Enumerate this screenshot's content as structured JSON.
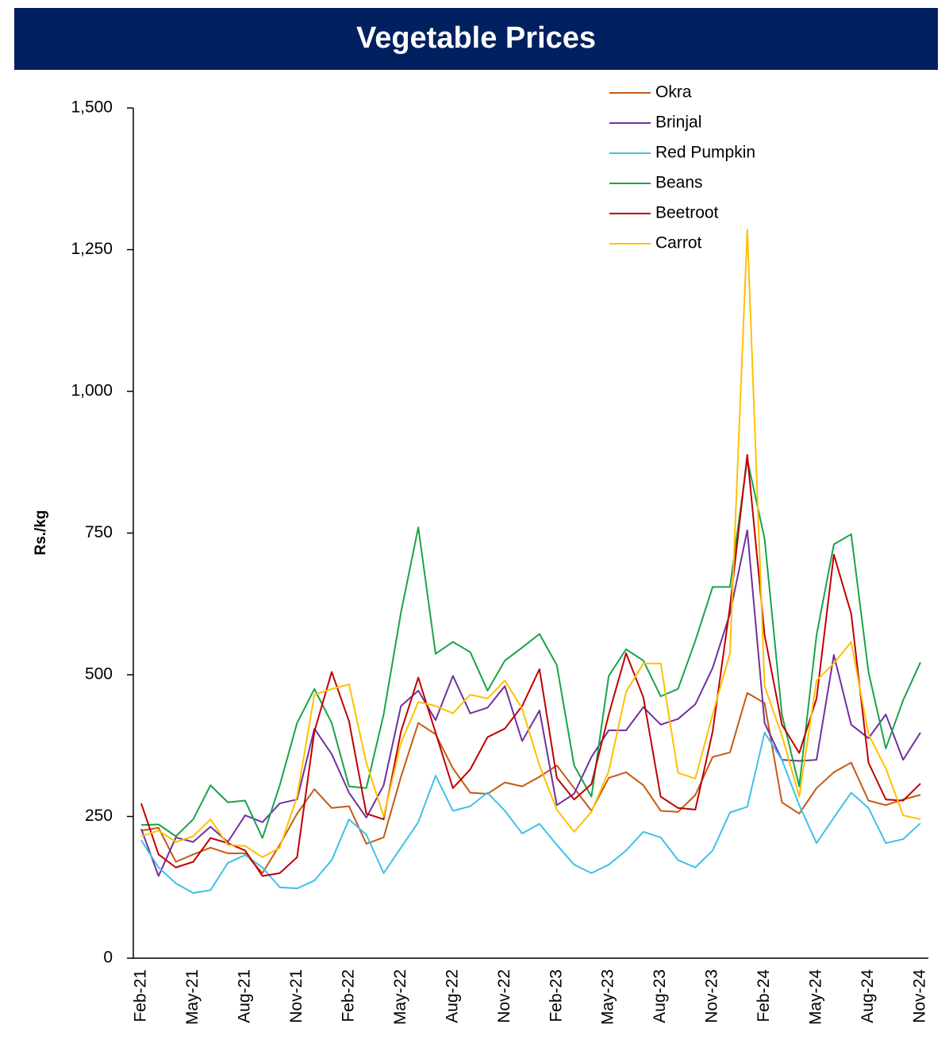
{
  "chart_data": {
    "type": "line",
    "title": "Vegetable Prices",
    "y_label": "Rs./kg",
    "categories": [
      "Feb-21",
      null,
      null,
      "May-21",
      null,
      null,
      "Aug-21",
      null,
      null,
      "Nov-21",
      null,
      null,
      "Feb-22",
      null,
      null,
      "May-22",
      null,
      null,
      "Aug-22",
      null,
      null,
      "Nov-22",
      null,
      null,
      "Feb-23",
      null,
      null,
      "May-23",
      null,
      null,
      "Aug-23",
      null,
      null,
      "Nov-23",
      null,
      null,
      "Feb-24",
      null,
      null,
      "May-24",
      null,
      null,
      "Aug-24",
      null,
      null,
      "Nov-24"
    ],
    "ylim": [
      0,
      1500
    ],
    "yticks": [
      0,
      250,
      500,
      750,
      {
        "value": 1000,
        "label": "1,000"
      },
      {
        "value": 1250,
        "label": "1,250"
      },
      {
        "value": 1500,
        "label": "1,500"
      }
    ],
    "grid": false,
    "legend": "top-right",
    "series": [
      {
        "name": "Okra",
        "color": "#C55A11",
        "values": [
          225,
          230,
          170,
          183,
          195,
          185,
          185,
          150,
          200,
          255,
          298,
          265,
          268,
          202,
          213,
          320,
          415,
          395,
          335,
          292,
          290,
          310,
          303,
          320,
          340,
          300,
          260,
          318,
          328,
          305,
          260,
          258,
          288,
          355,
          363,
          468,
          450,
          275,
          255,
          300,
          328,
          345,
          278,
          270,
          280,
          288
        ]
      },
      {
        "name": "Brinjal",
        "color": "#7030A0",
        "values": [
          228,
          145,
          213,
          205,
          232,
          205,
          252,
          240,
          273,
          280,
          405,
          360,
          292,
          248,
          305,
          445,
          472,
          420,
          498,
          432,
          442,
          480,
          383,
          437,
          270,
          290,
          355,
          402,
          402,
          443,
          412,
          422,
          448,
          512,
          608,
          755,
          415,
          350,
          348,
          350,
          535,
          412,
          388,
          430,
          350,
          398
        ]
      },
      {
        "name": "Red Pumpkin",
        "color": "#3EC1E8",
        "values": [
          208,
          160,
          132,
          115,
          120,
          168,
          182,
          160,
          125,
          123,
          137,
          173,
          245,
          218,
          150,
          195,
          240,
          322,
          260,
          268,
          292,
          260,
          220,
          237,
          200,
          165,
          150,
          165,
          190,
          223,
          213,
          173,
          160,
          190,
          257,
          267,
          398,
          350,
          270,
          203,
          248,
          292,
          265,
          203,
          210,
          238
        ]
      },
      {
        "name": "Beans",
        "color": "#1AA34A",
        "values": [
          235,
          236,
          215,
          245,
          305,
          275,
          278,
          212,
          305,
          415,
          475,
          415,
          303,
          300,
          430,
          610,
          760,
          537,
          558,
          540,
          472,
          525,
          548,
          572,
          517,
          340,
          285,
          498,
          545,
          525,
          462,
          475,
          560,
          655,
          655,
          880,
          740,
          430,
          303,
          570,
          730,
          748,
          505,
          370,
          455,
          522
        ]
      },
      {
        "name": "Beetroot",
        "color": "#C00000",
        "values": [
          273,
          183,
          160,
          170,
          212,
          203,
          190,
          145,
          150,
          178,
          400,
          505,
          418,
          255,
          245,
          400,
          495,
          398,
          300,
          333,
          390,
          405,
          445,
          510,
          318,
          280,
          307,
          430,
          538,
          460,
          285,
          265,
          262,
          400,
          620,
          888,
          570,
          412,
          362,
          458,
          712,
          608,
          345,
          280,
          278,
          308
        ]
      },
      {
        "name": "Carrot",
        "color": "#FFC000",
        "values": [
          215,
          225,
          205,
          215,
          245,
          200,
          198,
          178,
          195,
          285,
          465,
          475,
          483,
          345,
          250,
          380,
          452,
          445,
          432,
          465,
          458,
          490,
          440,
          340,
          262,
          223,
          258,
          330,
          470,
          520,
          520,
          327,
          317,
          430,
          538,
          1285,
          480,
          393,
          285,
          490,
          520,
          558,
          395,
          335,
          252,
          245
        ]
      }
    ]
  }
}
